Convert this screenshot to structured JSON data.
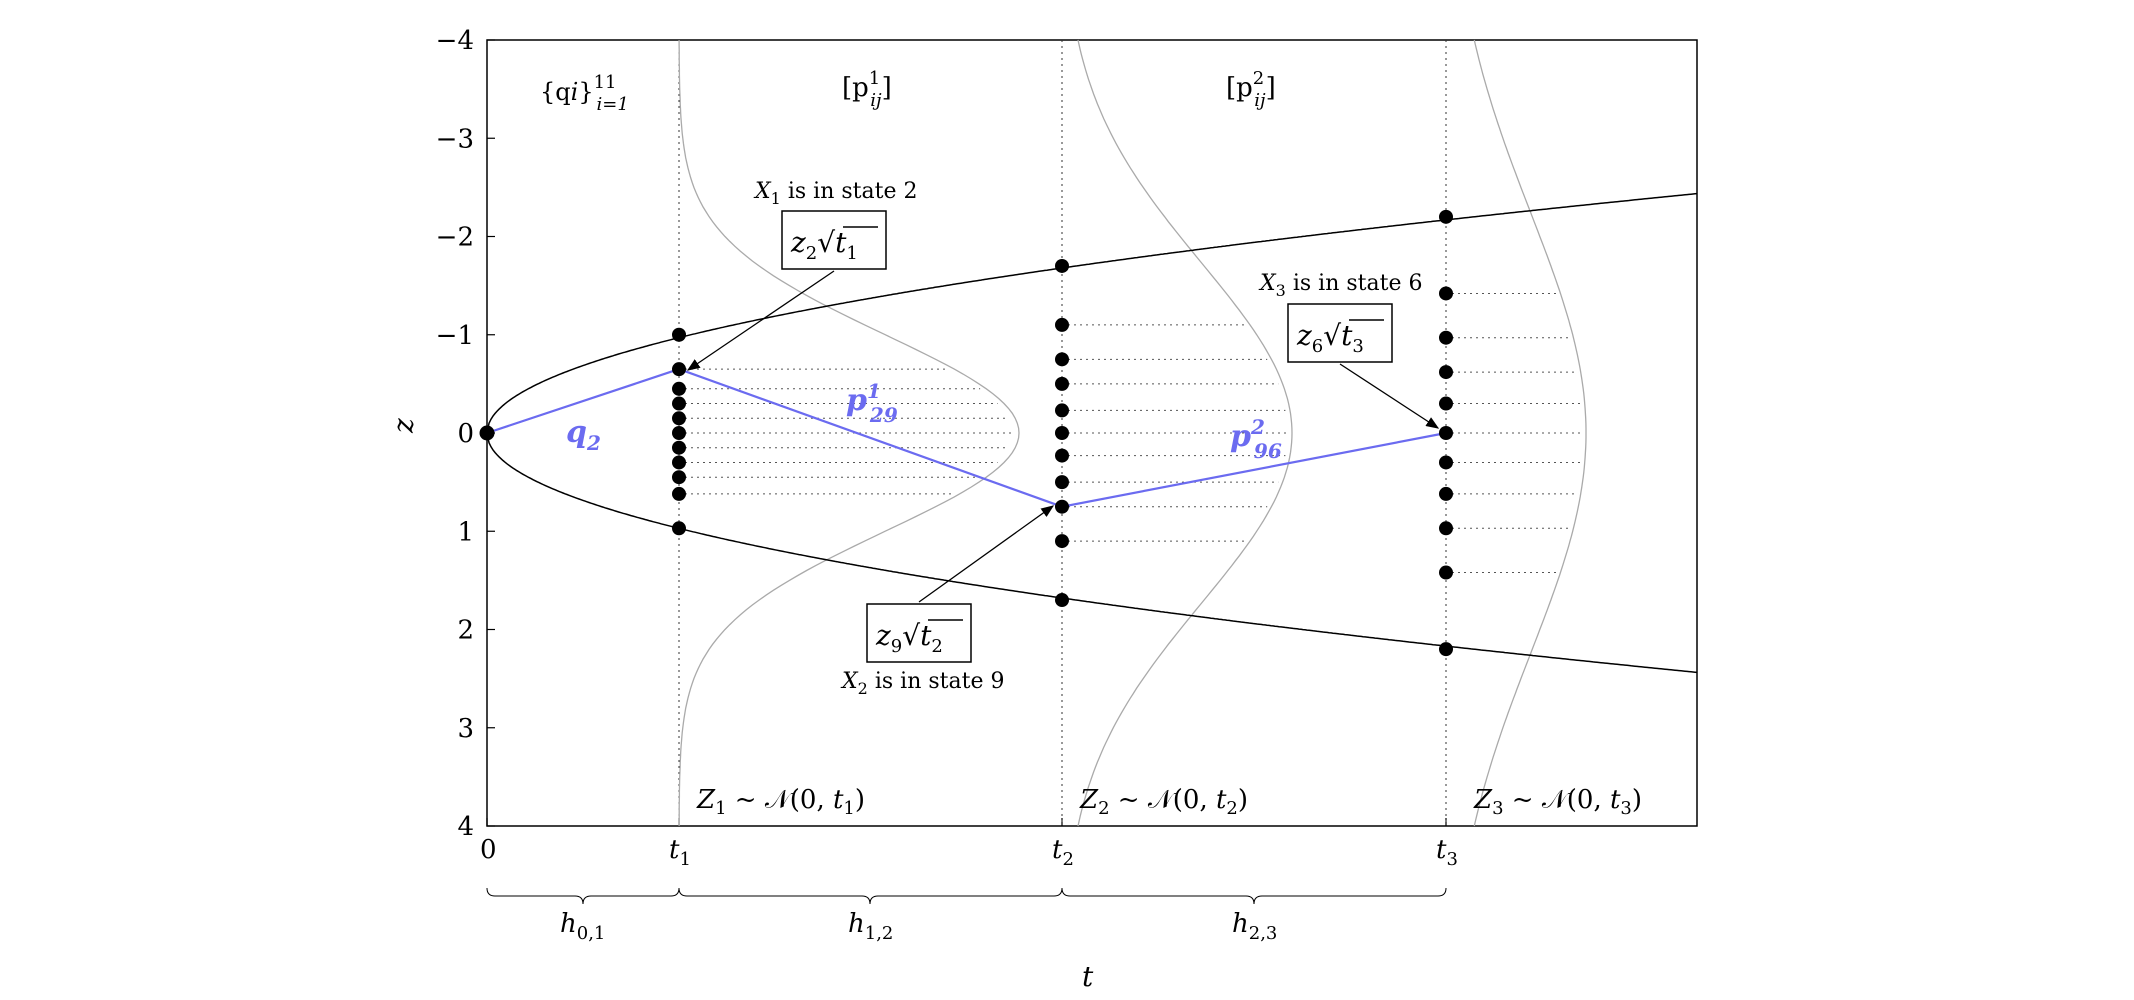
{
  "diagram": {
    "y_axis_label": "z",
    "x_axis_label": "t",
    "y_ticks": [
      "−4",
      "−3",
      "−2",
      "−1",
      "0",
      "1",
      "2",
      "3",
      "4"
    ],
    "x_ticks": [
      {
        "main": "0",
        "sub": ""
      },
      {
        "main": "t",
        "sub": "1"
      },
      {
        "main": "t",
        "sub": "2"
      },
      {
        "main": "t",
        "sub": "3"
      }
    ],
    "top_labels": {
      "q": {
        "body": "{q",
        "inner": "i",
        "close": "}",
        "sup": "11",
        "sub": "i=1"
      },
      "p1": {
        "open": "[p",
        "sup": "1",
        "sub": "ij",
        "close": "]"
      },
      "p2": {
        "open": "[p",
        "sup": "2",
        "sub": "ij",
        "close": "]"
      }
    },
    "distributions": [
      {
        "var": "Z",
        "idx": "1",
        "rest": " ~ 𝒩(0, ",
        "t": "t",
        "tidx": "1",
        "end": ")"
      },
      {
        "var": "Z",
        "idx": "2",
        "rest": " ~ 𝒩(0, ",
        "t": "t",
        "tidx": "2",
        "end": ")"
      },
      {
        "var": "Z",
        "idx": "3",
        "rest": " ~ 𝒩(0, ",
        "t": "t",
        "tidx": "3",
        "end": ")"
      }
    ],
    "annotations": [
      {
        "x": "X",
        "xi": "1",
        "state": " is in state 2",
        "z": "z",
        "zi": "2",
        "t": "t",
        "ti": "1"
      },
      {
        "x": "X",
        "xi": "2",
        "state": " is in state 9",
        "z": "z",
        "zi": "9",
        "t": "t",
        "ti": "2"
      },
      {
        "x": "X",
        "xi": "3",
        "state": " is in state 6",
        "z": "z",
        "zi": "6",
        "t": "t",
        "ti": "3"
      }
    ],
    "path_labels": {
      "q2": {
        "main": "q",
        "sub": "2"
      },
      "p29": {
        "main": "p",
        "sup": "1",
        "sub": "29"
      },
      "p96": {
        "main": "p",
        "sup": "2",
        "sub": "96"
      }
    },
    "intervals": [
      {
        "main": "h",
        "sub": "0,1"
      },
      {
        "main": "h",
        "sub": "1,2"
      },
      {
        "main": "h",
        "sub": "2,3"
      }
    ],
    "grid_states": {
      "t1": [
        -1,
        -0.65,
        -0.45,
        -0.3,
        -0.15,
        0,
        0.15,
        0.3,
        0.45,
        0.62,
        0.97
      ],
      "t2": [
        -1.7,
        -1.1,
        -0.75,
        -0.5,
        -0.23,
        0,
        0.23,
        0.5,
        0.75,
        1.1,
        1.7
      ],
      "t3": [
        -2.2,
        -1.42,
        -0.97,
        -0.62,
        -0.3,
        0,
        0.3,
        0.62,
        0.97,
        1.42,
        2.2
      ]
    },
    "path_states": [
      0,
      -0.65,
      0.75,
      0
    ],
    "colors": {
      "path": "#6b6bf0",
      "curve": "#aaaaaa",
      "axis": "#000000"
    }
  }
}
